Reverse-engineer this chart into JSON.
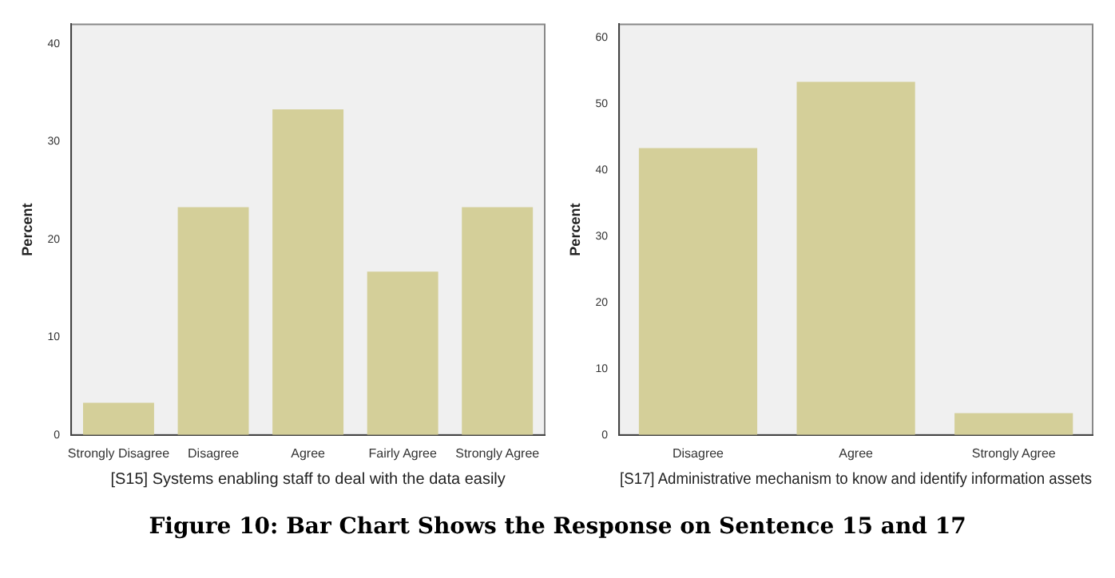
{
  "chart_data": [
    {
      "type": "bar",
      "xlabel": "[S15] Systems enabling staff to deal with the data easily",
      "ylabel": "Percent",
      "categories": [
        "Strongly Disagree",
        "Disagree",
        "Agree",
        "Fairly Agree",
        "Strongly Agree"
      ],
      "values": [
        3.3,
        23.3,
        33.3,
        16.7,
        23.3
      ],
      "color": "#d4cf99",
      "ylim": [
        0,
        42
      ],
      "yticks": [
        0,
        10,
        20,
        30,
        40
      ],
      "grid": false,
      "annotations": [
        "Figure 10: Bar Chart Shows the Response on Sentence 15 and 17"
      ]
    },
    {
      "type": "bar",
      "xlabel": "[S17] Administrative mechanism to know and identify information assets",
      "ylabel": "Percent",
      "categories": [
        "Disagree",
        "Agree",
        "Strongly Agree"
      ],
      "values": [
        43.3,
        53.3,
        3.3
      ],
      "color": "#d4cf99",
      "ylim": [
        0,
        62
      ],
      "yticks": [
        0,
        10,
        20,
        30,
        40,
        50,
        60
      ],
      "grid": false
    }
  ]
}
